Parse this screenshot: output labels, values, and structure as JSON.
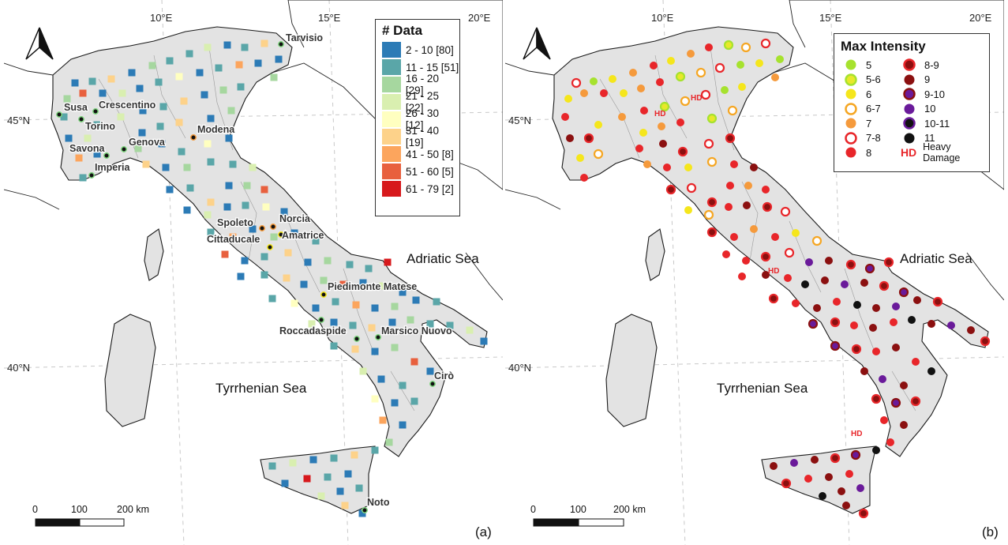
{
  "figure": {
    "panel_a": {
      "letter": "(a)",
      "legend_title": "# Data",
      "legend_items": [
        {
          "label": "2 - 10 [80]",
          "color": "#2c7bb6"
        },
        {
          "label": "11 - 15 [51]",
          "color": "#5aa6a8"
        },
        {
          "label": "16 - 20 [29]",
          "color": "#a6d79f"
        },
        {
          "label": "21 - 25 [22]",
          "color": "#d9efb0"
        },
        {
          "label": "26 - 30 [12]",
          "color": "#ffffc0"
        },
        {
          "label": "31 - 40 [19]",
          "color": "#fdd28a"
        },
        {
          "label": "41 - 50 [8]",
          "color": "#fca55d"
        },
        {
          "label": "51 - 60 [5]",
          "color": "#e8603e"
        },
        {
          "label": "61 - 79 [2]",
          "color": "#d7191c"
        }
      ],
      "towns": [
        "Tarvisio",
        "Susa",
        "Crescentino",
        "Torino",
        "Modena",
        "Savona",
        "Genova",
        "Imperia",
        "Spoleto",
        "Norcia",
        "Cittaducale",
        "Amatrice",
        "Piedimonte Matese",
        "Roccadaspide",
        "Marsico Nuovo",
        "Cirò",
        "Noto"
      ]
    },
    "panel_b": {
      "letter": "(b)",
      "legend_title": "Max Intensity",
      "legend_col1": [
        {
          "label": "5",
          "fill": "#a6e22e",
          "ring": ""
        },
        {
          "label": "5-6",
          "fill": "#e8e82a",
          "ring": "#a6e22e"
        },
        {
          "label": "6",
          "fill": "#f5e61c",
          "ring": ""
        },
        {
          "label": "6-7",
          "fill": "#ffffff",
          "ring": "#f5a623"
        },
        {
          "label": "7",
          "fill": "#f59a3c",
          "ring": ""
        },
        {
          "label": "7-8",
          "fill": "#ffffff",
          "ring": "#e8262a"
        },
        {
          "label": "8",
          "fill": "#e8262a",
          "ring": ""
        }
      ],
      "legend_col2": [
        {
          "label": "8-9",
          "fill": "#8b1010",
          "ring": "#e8262a"
        },
        {
          "label": "9",
          "fill": "#8b1010",
          "ring": ""
        },
        {
          "label": "9-10",
          "fill": "#6a1a9a",
          "ring": "#8b1010"
        },
        {
          "label": "10",
          "fill": "#6a1a9a",
          "ring": ""
        },
        {
          "label": "10-11",
          "fill": "#111111",
          "ring": "#6a1a9a"
        },
        {
          "label": "11",
          "fill": "#111111",
          "ring": ""
        }
      ],
      "hd_symbol": "HD",
      "hd_label": "Heavy Damage"
    },
    "common": {
      "lon_labels": [
        "10°E",
        "15°E",
        "20°E"
      ],
      "lat_labels": [
        "45°N",
        "40°N"
      ],
      "sea_labels": [
        "Adriatic Sea",
        "Tyrrhenian Sea"
      ],
      "scale_labels": [
        "0",
        "100",
        "200 km"
      ],
      "north_icon": "north-arrow-icon"
    }
  }
}
